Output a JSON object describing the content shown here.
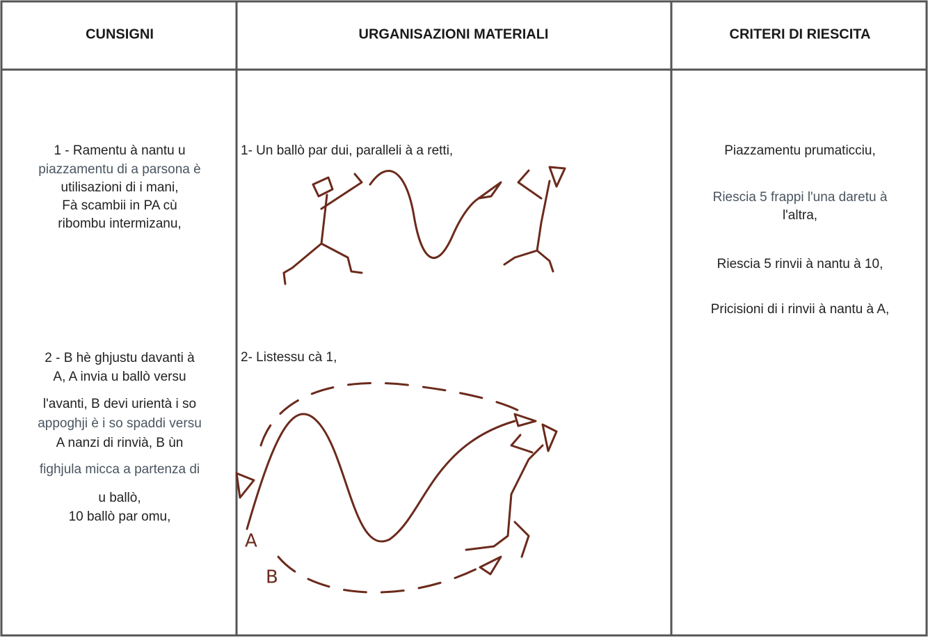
{
  "header": {
    "columns": [
      "CUNSIGNI",
      "URGANISAZIONI MATERIALI",
      "CRITERI DI RIESCITA"
    ]
  },
  "cunsigni": {
    "items": [
      {
        "lines": [
          "1 - Ramentu à nantu u",
          "piazzamentu di a parsona è",
          "utilisazioni di i mani,",
          "Fà scambii in PA cù",
          "ribombu intermizanu,"
        ]
      },
      {
        "lines": [
          "2 - B hè ghjustu davanti à",
          "A, A invia u ballò versu",
          "l'avanti, B devi urientà i so",
          "appoghji è i so spaddi versu",
          "A nanzi di rinvià, B ùn",
          "fighjula micca a partenza di",
          "u ballò,",
          "10 ballò par omu,"
        ]
      }
    ]
  },
  "urganisazioni": {
    "items": [
      {
        "text": "1- Un ballò par dui, paralleli à a retti,"
      },
      {
        "text": "2- Listessu cà 1,",
        "labels": [
          "A",
          "B"
        ]
      }
    ]
  },
  "criteri": {
    "lines": [
      "Piazzamentu prumaticciu,",
      "Riescia 5 frappi l'una daretu à",
      "l'altra,",
      "Riescia 5 rinvii à nantu à 10,",
      "Pricisioni di i rinvii à nantu à A,"
    ]
  }
}
